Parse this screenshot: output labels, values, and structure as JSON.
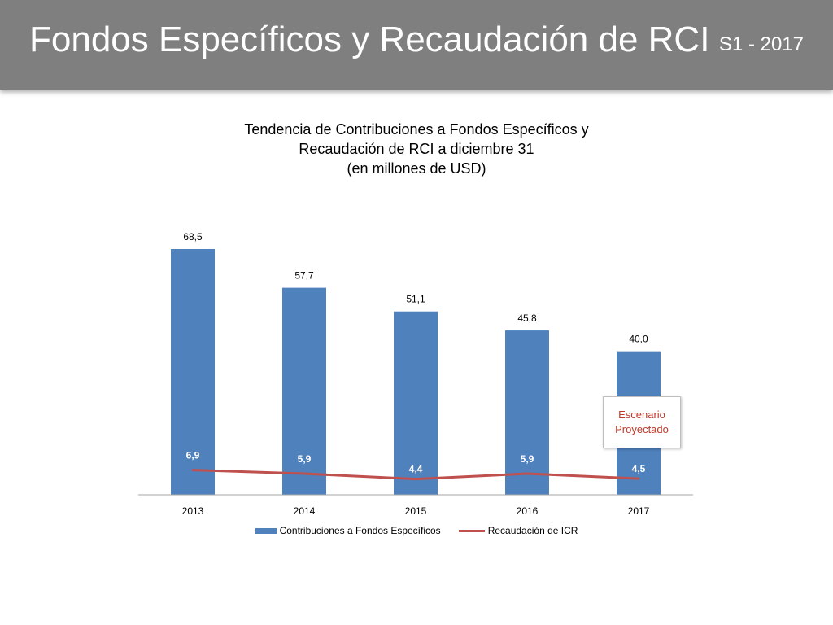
{
  "header": {
    "title": "Fondos Específicos y Recaudación de RCI",
    "tag": "S1 - 2017"
  },
  "annotation": {
    "line1": "Escenario",
    "line2": "Proyectado"
  },
  "colors": {
    "bar": "#4f81bd",
    "line": "#c0504d",
    "header_bg": "#7f7f7f",
    "annotation_text": "#c0392b"
  },
  "chart_data": {
    "type": "bar",
    "title_lines": [
      "Tendencia de Contribuciones a Fondos Específicos y",
      "Recaudación de RCI a diciembre 31",
      "(en millones de USD)"
    ],
    "categories": [
      "2013",
      "2014",
      "2015",
      "2016",
      "2017"
    ],
    "series": [
      {
        "name": "Contribuciones a Fondos Específicos",
        "type": "bar",
        "values": [
          68.5,
          57.7,
          51.1,
          45.8,
          40.0
        ],
        "labels": [
          "68,5",
          "57,7",
          "51,1",
          "45,8",
          "40,0"
        ]
      },
      {
        "name": "Recaudación de ICR",
        "type": "line",
        "values": [
          6.9,
          5.9,
          4.4,
          5.9,
          4.5
        ],
        "labels": [
          "6,9",
          "5,9",
          "4,4",
          "5,9",
          "4,5"
        ]
      }
    ],
    "legend_position": "bottom",
    "grid": false,
    "ylim": [
      0,
      70
    ]
  }
}
